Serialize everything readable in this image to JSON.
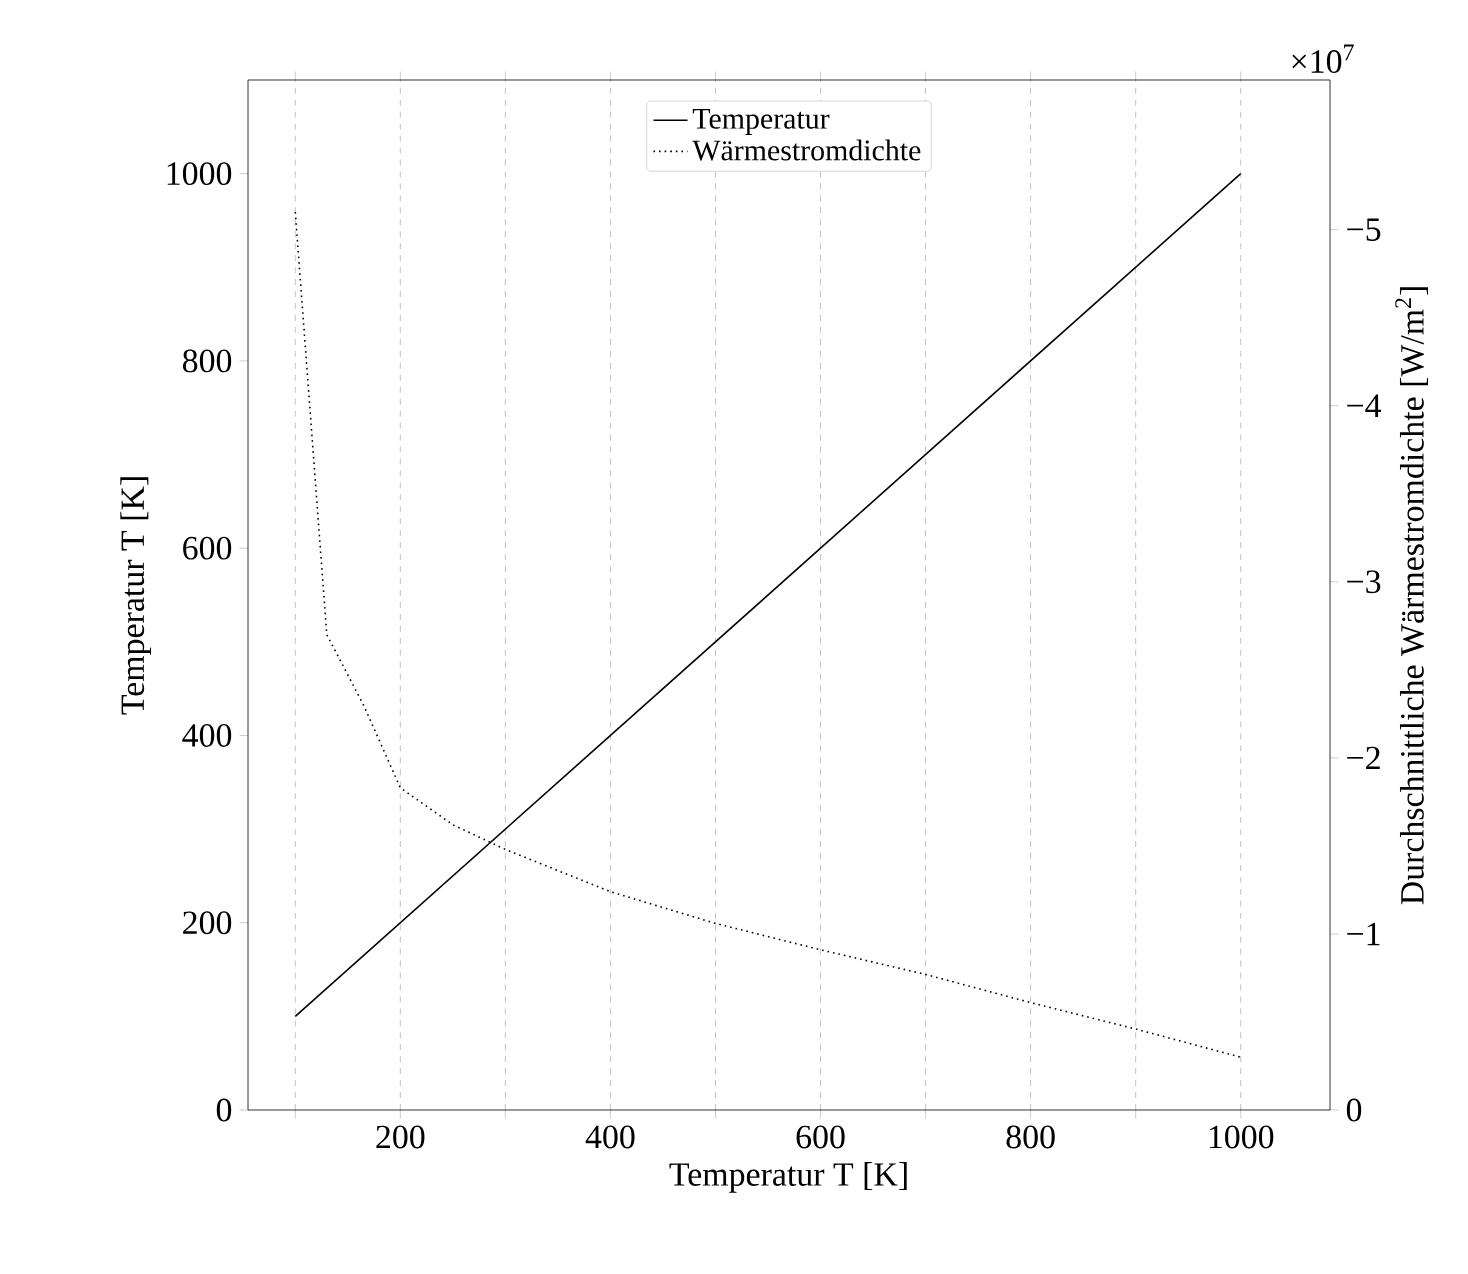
{
  "chart_data": {
    "type": "line",
    "xlabel": "Temperatur T [K]",
    "ylabel": "Temperatur T [K]",
    "y2label": "Durchschnittliche Wärmestromdichte [W/m$^{2}$]",
    "annotations": [
      "×10$^{7}$"
    ],
    "series": [
      {
        "name": "Temperatur",
        "color": "#000000",
        "line_style": "solid",
        "x": [
          100,
          1000
        ],
        "values": [
          100,
          1000
        ]
      },
      {
        "name": "Wärmestromdichte",
        "color": "#000000",
        "line_style": "dotted",
        "axis": "y2",
        "x": [
          100,
          130,
          165,
          200,
          250,
          300,
          400,
          500,
          600,
          700,
          800,
          900,
          1000
        ],
        "values": [
          -5.1,
          -2.7,
          -2.3,
          -1.83,
          -1.62,
          -1.48,
          -1.24,
          -1.06,
          -0.91,
          -0.77,
          -0.61,
          -0.46,
          -0.3
        ]
      }
    ],
    "xlim": [
      55,
      1085
    ],
    "ylim": [
      0,
      1100
    ],
    "y2lim": [
      0,
      -5.85
    ],
    "xticks": [
      {
        "value": 100,
        "label": null
      },
      200,
      {
        "value": 300,
        "label": null
      },
      400,
      {
        "value": 500,
        "label": null
      },
      600,
      {
        "value": 700,
        "label": null
      },
      800,
      {
        "value": 900,
        "label": null
      },
      1000
    ],
    "yticks": [
      0,
      200,
      400,
      600,
      800,
      1000
    ],
    "y2ticks": [
      0,
      {
        "value": -1,
        "label": "−1"
      },
      {
        "value": -2,
        "label": "−2"
      },
      {
        "value": -3,
        "label": "−3"
      },
      {
        "value": -4,
        "label": "−4"
      },
      {
        "value": -5,
        "label": "−5"
      }
    ],
    "grid": "x",
    "legend": "top"
  }
}
